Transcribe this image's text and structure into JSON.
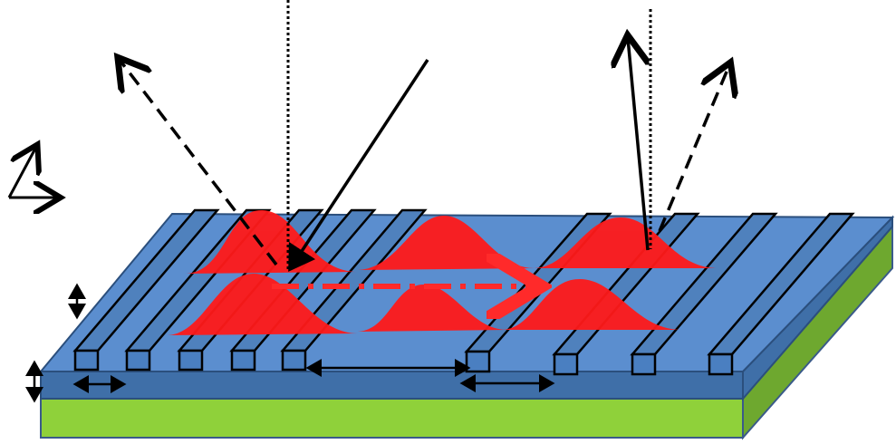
{
  "diagram": {
    "colors": {
      "substrate_top": "#4f81bd",
      "substrate_side": "#3f6fa8",
      "substrate_bottom_layer": "#8fd13a",
      "substrate_bottom_side": "#6ea82f",
      "grating": "#4f81bd",
      "grating_outline": "#000000",
      "mode_profile": "#ff1a1a",
      "guided_arrow": "#ff2a2a",
      "beam": "#000000"
    },
    "elements": {
      "incident_beam": "solid-incident-beam",
      "reflected_beam_left": "dashed-reflected-beam",
      "reflected_beam_right": "dashed-diffracted-beam",
      "outcoupled_beam": "solid-outcoupled-beam",
      "normal_left": "dotted-normal-line",
      "normal_right": "dotted-normal-line",
      "guided_mode": "dash-dot-guided-wave-arrow",
      "coordinate_axes": "axes-icon"
    }
  }
}
